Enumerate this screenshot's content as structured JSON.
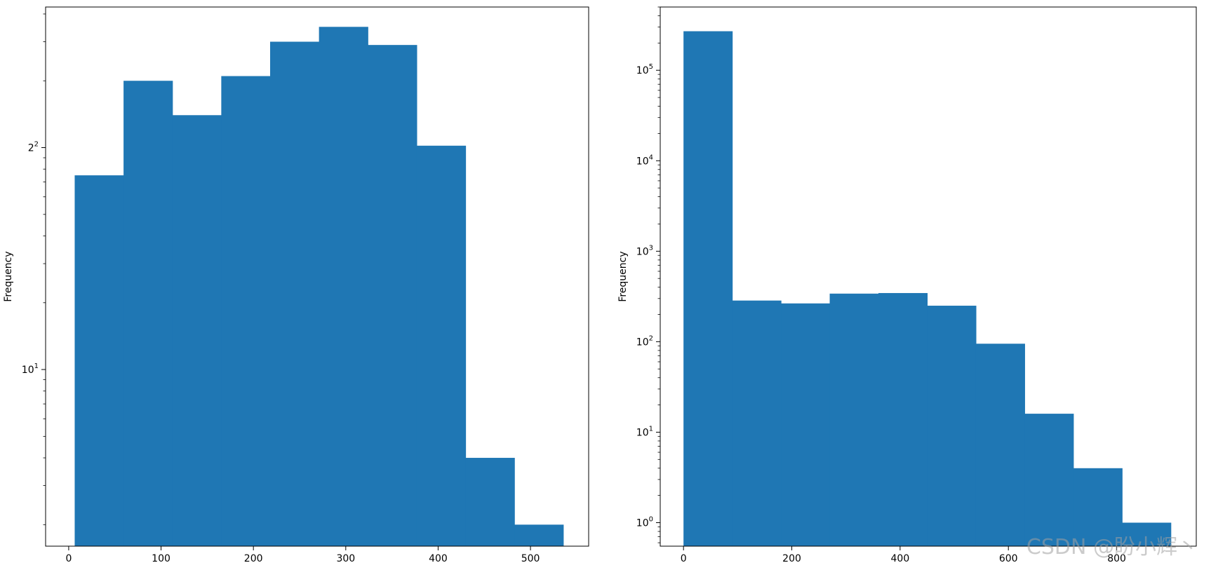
{
  "colors": {
    "bar": "#1f77b4",
    "axis": "#000000",
    "background": "#ffffff"
  },
  "watermark": {
    "text": "CSDN @盼小辉丶"
  },
  "chart_data": [
    {
      "type": "bar",
      "histogram": true,
      "yscale": "log",
      "ylabel": "Frequency",
      "xlabel": "",
      "title": "",
      "grid": false,
      "bin_edges": [
        6.5,
        59.4,
        112.3,
        165.2,
        218.1,
        271.0,
        323.9,
        376.8,
        429.7,
        482.6,
        535.5
      ],
      "values": [
        75,
        200,
        140,
        210,
        300,
        350,
        290,
        102,
        4,
        2
      ],
      "xlim": [
        -25,
        563
      ],
      "ylim": [
        1.6,
        430
      ],
      "xticks": [
        0,
        100,
        200,
        300,
        400,
        500
      ],
      "xtick_labels": [
        "0",
        "100",
        "200",
        "300",
        "400",
        "500"
      ],
      "yticks_major": [
        10,
        100
      ],
      "ytick_labels": [
        "10",
        "2"
      ],
      "ytick_label_base": "10",
      "ytick_label_exponents": [
        "1",
        "2"
      ]
    },
    {
      "type": "bar",
      "histogram": true,
      "yscale": "log",
      "ylabel": "Frequency",
      "xlabel": "",
      "title": "",
      "grid": false,
      "bin_edges": [
        0,
        90,
        180,
        270,
        360,
        450,
        540,
        630,
        720,
        810,
        900
      ],
      "values": [
        270000,
        285,
        265,
        340,
        345,
        250,
        95,
        16,
        4,
        1
      ],
      "xlim": [
        -43,
        947
      ],
      "ylim": [
        0.55,
        500000
      ],
      "xticks": [
        0,
        200,
        400,
        600,
        800
      ],
      "xtick_labels": [
        "0",
        "200",
        "400",
        "600",
        "800"
      ],
      "yticks_major": [
        1,
        10,
        100,
        1000,
        10000,
        100000
      ],
      "ytick_labels": [
        "10",
        "10",
        "10",
        "10",
        "10",
        "10"
      ],
      "ytick_label_base": "10",
      "ytick_label_exponents": [
        "0",
        "1",
        "2",
        "3",
        "4",
        "5"
      ]
    }
  ]
}
